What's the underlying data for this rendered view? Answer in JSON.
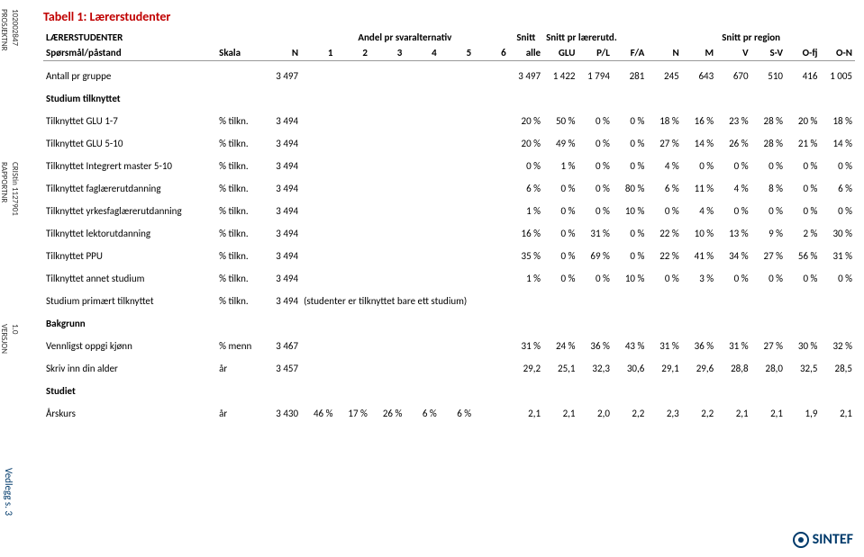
{
  "side": {
    "prosjektnr_label": "PROSJEKTNR",
    "prosjektnr_val": "102002847",
    "rapportnr_label": "RAPPORTNR",
    "rapportnr_val": "CRIStin 1127901",
    "versjon_label": "VERSJON",
    "versjon_val": "1.0",
    "vedlegg": "Vedlegg s. 3"
  },
  "title": "Tabell 1: Lærerstudenter",
  "head": {
    "r1": {
      "main": "LÆRERSTUDENTER",
      "andel": "Andel pr svaralternativ",
      "snitt_alle": "Snitt",
      "snitt_lar": "Snitt pr lærerutd.",
      "snitt_reg": "Snitt pr region"
    },
    "r2": {
      "sp": "Spørsmål/påstand",
      "skala": "Skala",
      "n": "N",
      "c1": "1",
      "c2": "2",
      "c3": "3",
      "c4": "4",
      "c5": "5",
      "c6": "6",
      "alle": "alle",
      "glu": "GLU",
      "pl": "P/L",
      "fa": "F/A",
      "rn": "N",
      "rm": "M",
      "rv": "V",
      "rsv": "S-V",
      "rofj": "O-fj",
      "ron": "O-N"
    }
  },
  "rows": [
    {
      "type": "data",
      "label": "Antall pr gruppe",
      "skala": "",
      "n": "3 497",
      "d": [
        "",
        "",
        "",
        "",
        "",
        ""
      ],
      "alle": "3 497",
      "lar": [
        "1 422",
        "1 794",
        "281"
      ],
      "reg": [
        "245",
        "643",
        "670",
        "510",
        "416",
        "1 005"
      ]
    },
    {
      "type": "section",
      "label": "Studium tilknyttet"
    },
    {
      "type": "data",
      "label": "Tilknyttet GLU 1-7",
      "skala": "% tilkn.",
      "n": "3 494",
      "d": [
        "",
        "",
        "",
        "",
        "",
        ""
      ],
      "alle": "20 %",
      "lar": [
        "50 %",
        "0 %",
        "0 %"
      ],
      "reg": [
        "18 %",
        "16 %",
        "23 %",
        "28 %",
        "20 %",
        "18 %"
      ]
    },
    {
      "type": "data",
      "label": "Tilknyttet GLU 5-10",
      "skala": "% tilkn.",
      "n": "3 494",
      "d": [
        "",
        "",
        "",
        "",
        "",
        ""
      ],
      "alle": "20 %",
      "lar": [
        "49 %",
        "0 %",
        "0 %"
      ],
      "reg": [
        "27 %",
        "14 %",
        "26 %",
        "28 %",
        "21 %",
        "14 %"
      ]
    },
    {
      "type": "data",
      "label": "Tilknyttet Integrert master 5-10",
      "skala": "% tilkn.",
      "n": "3 494",
      "d": [
        "",
        "",
        "",
        "",
        "",
        ""
      ],
      "alle": "0 %",
      "lar": [
        "1 %",
        "0 %",
        "0 %"
      ],
      "reg": [
        "4 %",
        "0 %",
        "0 %",
        "0 %",
        "0 %",
        "0 %"
      ]
    },
    {
      "type": "data",
      "label": "Tilknyttet faglærerutdanning",
      "skala": "% tilkn.",
      "n": "3 494",
      "d": [
        "",
        "",
        "",
        "",
        "",
        ""
      ],
      "alle": "6 %",
      "lar": [
        "0 %",
        "0 %",
        "80 %"
      ],
      "reg": [
        "6 %",
        "11 %",
        "4 %",
        "8 %",
        "0 %",
        "6 %"
      ]
    },
    {
      "type": "data",
      "label": "Tilknyttet yrkesfaglærerutdanning",
      "skala": "% tilkn.",
      "n": "3 494",
      "d": [
        "",
        "",
        "",
        "",
        "",
        ""
      ],
      "alle": "1 %",
      "lar": [
        "0 %",
        "0 %",
        "10 %"
      ],
      "reg": [
        "0 %",
        "4 %",
        "0 %",
        "0 %",
        "0 %",
        "0 %"
      ]
    },
    {
      "type": "data",
      "label": "Tilknyttet lektorutdanning",
      "skala": "% tilkn.",
      "n": "3 494",
      "d": [
        "",
        "",
        "",
        "",
        "",
        ""
      ],
      "alle": "16 %",
      "lar": [
        "0 %",
        "31 %",
        "0 %"
      ],
      "reg": [
        "22 %",
        "10 %",
        "13 %",
        "9 %",
        "2 %",
        "30 %"
      ]
    },
    {
      "type": "data",
      "label": "Tilknyttet PPU",
      "skala": "% tilkn.",
      "n": "3 494",
      "d": [
        "",
        "",
        "",
        "",
        "",
        ""
      ],
      "alle": "35 %",
      "lar": [
        "0 %",
        "69 %",
        "0 %"
      ],
      "reg": [
        "22 %",
        "41 %",
        "34 %",
        "27 %",
        "56 %",
        "31 %"
      ]
    },
    {
      "type": "data",
      "label": "Tilknyttet annet studium",
      "skala": "% tilkn.",
      "n": "3 494",
      "d": [
        "",
        "",
        "",
        "",
        "",
        ""
      ],
      "alle": "1 %",
      "lar": [
        "0 %",
        "0 %",
        "10 %"
      ],
      "reg": [
        "0 %",
        "3 %",
        "0 %",
        "0 %",
        "0 %",
        "0 %"
      ]
    },
    {
      "type": "data",
      "label": "Studium primært tilknyttet",
      "skala": "% tilkn.",
      "n": "3 494",
      "note": "(studenter er tilknyttet bare ett studium)"
    },
    {
      "type": "section",
      "label": "Bakgrunn"
    },
    {
      "type": "data",
      "label": "Vennligst oppgi kjønn",
      "skala": "% menn",
      "n": "3 467",
      "d": [
        "",
        "",
        "",
        "",
        "",
        ""
      ],
      "alle": "31 %",
      "lar": [
        "24 %",
        "36 %",
        "43 %"
      ],
      "reg": [
        "31 %",
        "36 %",
        "31 %",
        "27 %",
        "30 %",
        "32 %"
      ]
    },
    {
      "type": "data",
      "label": "Skriv inn din alder",
      "skala": "år",
      "n": "3 457",
      "d": [
        "",
        "",
        "",
        "",
        "",
        ""
      ],
      "alle": "29,2",
      "lar": [
        "25,1",
        "32,3",
        "30,6"
      ],
      "reg": [
        "29,1",
        "29,6",
        "28,8",
        "28,0",
        "32,5",
        "28,5"
      ]
    },
    {
      "type": "section",
      "label": "Studiet"
    },
    {
      "type": "data",
      "label": "Årskurs",
      "skala": "år",
      "n": "3 430",
      "d": [
        "46 %",
        "17 %",
        "26 %",
        "6 %",
        "6 %",
        ""
      ],
      "alle": "2,1",
      "lar": [
        "2,1",
        "2,0",
        "2,2"
      ],
      "reg": [
        "2,3",
        "2,2",
        "2,1",
        "2,1",
        "1,9",
        "2,1"
      ]
    }
  ],
  "logo": "SINTEF"
}
